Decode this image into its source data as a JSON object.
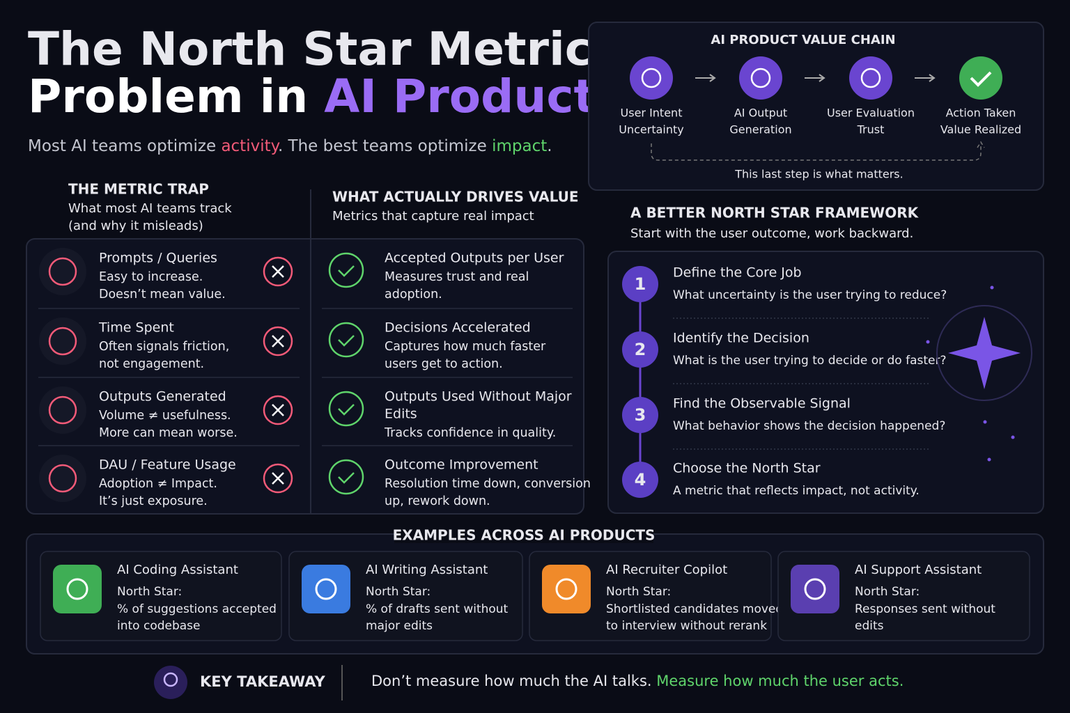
{
  "title": {
    "line1": "The North Star Metric",
    "line2_prefix": "Problem in ",
    "line2_highlight": "AI Products"
  },
  "subtitle": [
    "Most AI teams optimize ",
    "activity",
    ". The best teams optimize ",
    "impact",
    "."
  ],
  "metric_trap": {
    "heading": "THE METRIC TRAP",
    "subheading": [
      "What most AI teams track",
      "(and why it misleads)"
    ],
    "items": [
      {
        "title": "Prompts / Queries",
        "lines": [
          "Easy to increase.",
          "Doesn’t mean value."
        ]
      },
      {
        "title": "Time Spent",
        "lines": [
          "Often signals friction,",
          "not engagement."
        ]
      },
      {
        "title": "Outputs Generated",
        "lines": [
          "Volume ≠ usefulness.",
          "More can mean worse."
        ]
      },
      {
        "title": "DAU / Feature Usage",
        "lines": [
          "Adoption ≠ Impact.",
          "It’s just exposure."
        ]
      }
    ]
  },
  "drives_value": {
    "heading": "WHAT ACTUALLY DRIVES VALUE",
    "subheading": [
      "Metrics that capture real impact"
    ],
    "items": [
      {
        "title": [
          "Accepted Outputs per User"
        ],
        "lines": [
          "Measures trust and real",
          "adoption."
        ]
      },
      {
        "title": [
          "Decisions Accelerated"
        ],
        "lines": [
          "Captures how much faster",
          "users get to action."
        ]
      },
      {
        "title": [
          "Outputs Used Without Major",
          "Edits"
        ],
        "lines": [
          "Tracks confidence in quality."
        ]
      },
      {
        "title": [
          "Outcome Improvement"
        ],
        "lines": [
          "Resolution time down, conversion",
          "up, rework down."
        ]
      }
    ]
  },
  "value_chain": {
    "heading": "AI PRODUCT VALUE CHAIN",
    "steps": [
      [
        "User Intent",
        "Uncertainty"
      ],
      [
        "AI Output",
        "Generation"
      ],
      [
        "User Evaluation",
        "Trust"
      ],
      [
        "Action Taken",
        "Value Realized"
      ]
    ],
    "note": "This last step is what matters."
  },
  "framework": {
    "heading": "A BETTER NORTH STAR FRAMEWORK",
    "subheading": "Start with the user outcome, work backward.",
    "steps": [
      {
        "number": "1",
        "title": "Define the Core Job",
        "question": "What uncertainty is the user trying to reduce?"
      },
      {
        "number": "2",
        "title": "Identify the Decision",
        "question": "What is the user trying to decide or do faster?"
      },
      {
        "number": "3",
        "title": "Find the Observable Signal",
        "question": "What behavior shows the decision happened?"
      },
      {
        "number": "4",
        "title": "Choose the North Star",
        "question": "A metric that reflects impact, not activity."
      }
    ]
  },
  "examples": {
    "heading": "EXAMPLES ACROSS AI PRODUCTS",
    "items": [
      {
        "name": "AI Coding Assistant",
        "label": "North Star:",
        "lines": [
          "% of suggestions accepted",
          "into codebase"
        ]
      },
      {
        "name": "AI Writing Assistant",
        "label": "North Star:",
        "lines": [
          "% of drafts sent without",
          "major edits"
        ]
      },
      {
        "name": "AI Recruiter Copilot",
        "label": "North Star:",
        "lines": [
          "Shortlisted candidates moved",
          "to interview without rerank"
        ]
      },
      {
        "name": "AI Support Assistant",
        "label": "North Star:",
        "lines": [
          "Responses sent without",
          "edits"
        ]
      }
    ]
  },
  "takeaway": {
    "label": "KEY TAKEAWAY",
    "parts": [
      "Don’t measure how much the AI talks. ",
      "Measure how much the user acts."
    ]
  }
}
